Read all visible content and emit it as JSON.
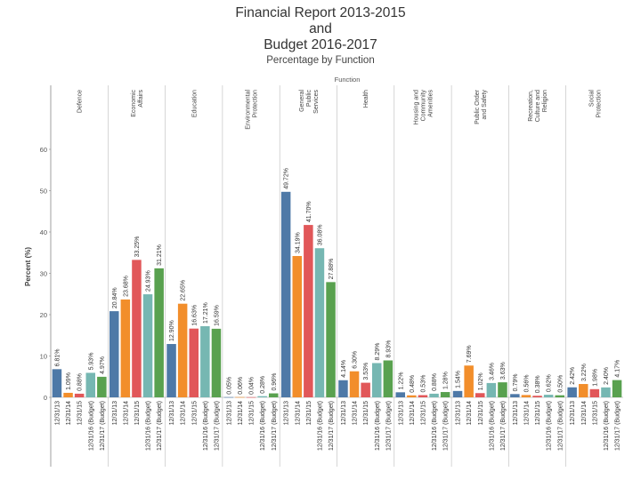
{
  "title_lines": [
    "Financial Report 2013-2015",
    "and",
    "Budget 2016-2017"
  ],
  "subtitle": "Percentage by Function",
  "chart_data": {
    "type": "bar",
    "facet_title": "Function",
    "ylabel": "Percent (%)",
    "ylim": [
      0,
      60
    ],
    "yticks": [
      0,
      10,
      20,
      30,
      40,
      50,
      60
    ],
    "grid": false,
    "categories": [
      "12/31/13",
      "12/31/14",
      "12/31/15",
      "12/31/16 (Budget)",
      "12/31/17 (Budget)"
    ],
    "colors": [
      "#4E79A7",
      "#F28E2B",
      "#E15759",
      "#76B7B2",
      "#59A14F"
    ],
    "panels": [
      {
        "name": "Defence",
        "values": [
          6.81,
          1.09,
          0.88,
          5.93,
          4.97
        ],
        "labels": [
          "6.81%",
          "1.09%",
          "0.88%",
          "5.93%",
          "4.97%"
        ]
      },
      {
        "name": "Economic Affairs",
        "values": [
          20.84,
          23.68,
          33.25,
          24.93,
          31.21
        ],
        "labels": [
          "20.84%",
          "23.68%",
          "33.25%",
          "24.93%",
          "31.21%"
        ]
      },
      {
        "name": "Education",
        "values": [
          12.9,
          22.65,
          16.63,
          17.21,
          16.59
        ],
        "labels": [
          "12.90%",
          "22.65%",
          "16.63%",
          "17.21%",
          "16.59%"
        ]
      },
      {
        "name": "Environmental Protection",
        "values": [
          0.05,
          0.06,
          0.04,
          0.28,
          0.96
        ],
        "labels": [
          "0.05%",
          "0.06%",
          "0.04%",
          "0.28%",
          "0.96%"
        ]
      },
      {
        "name": "General Public Services",
        "values": [
          49.72,
          34.19,
          41.7,
          36.08,
          27.88
        ],
        "labels": [
          "49.72%",
          "34.19%",
          "41.70%",
          "36.08%",
          "27.88%"
        ]
      },
      {
        "name": "Health",
        "values": [
          4.14,
          6.3,
          3.53,
          8.29,
          8.93
        ],
        "labels": [
          "4.14%",
          "6.30%",
          "3.53%",
          "8.29%",
          "8.93%"
        ]
      },
      {
        "name": "Housing and Community Amenities",
        "values": [
          1.22,
          0.48,
          0.53,
          0.88,
          1.28
        ],
        "labels": [
          "1.22%",
          "0.48%",
          "0.53%",
          "0.88%",
          "1.28%"
        ]
      },
      {
        "name": "Public Order and Safety",
        "values": [
          1.54,
          7.69,
          1.02,
          3.46,
          3.63
        ],
        "labels": [
          "1.54%",
          "7.69%",
          "1.02%",
          "3.46%",
          "3.63%"
        ]
      },
      {
        "name": "Recreation, Culture and Religion",
        "values": [
          0.79,
          0.56,
          0.38,
          0.62,
          0.5
        ],
        "labels": [
          "0.79%",
          "0.56%",
          "0.38%",
          "0.62%",
          "0.50%"
        ]
      },
      {
        "name": "Social Protection",
        "values": [
          2.42,
          3.22,
          1.98,
          2.4,
          4.17
        ],
        "labels": [
          "2.42%",
          "3.22%",
          "1.98%",
          "2.40%",
          "4.17%"
        ]
      }
    ]
  }
}
